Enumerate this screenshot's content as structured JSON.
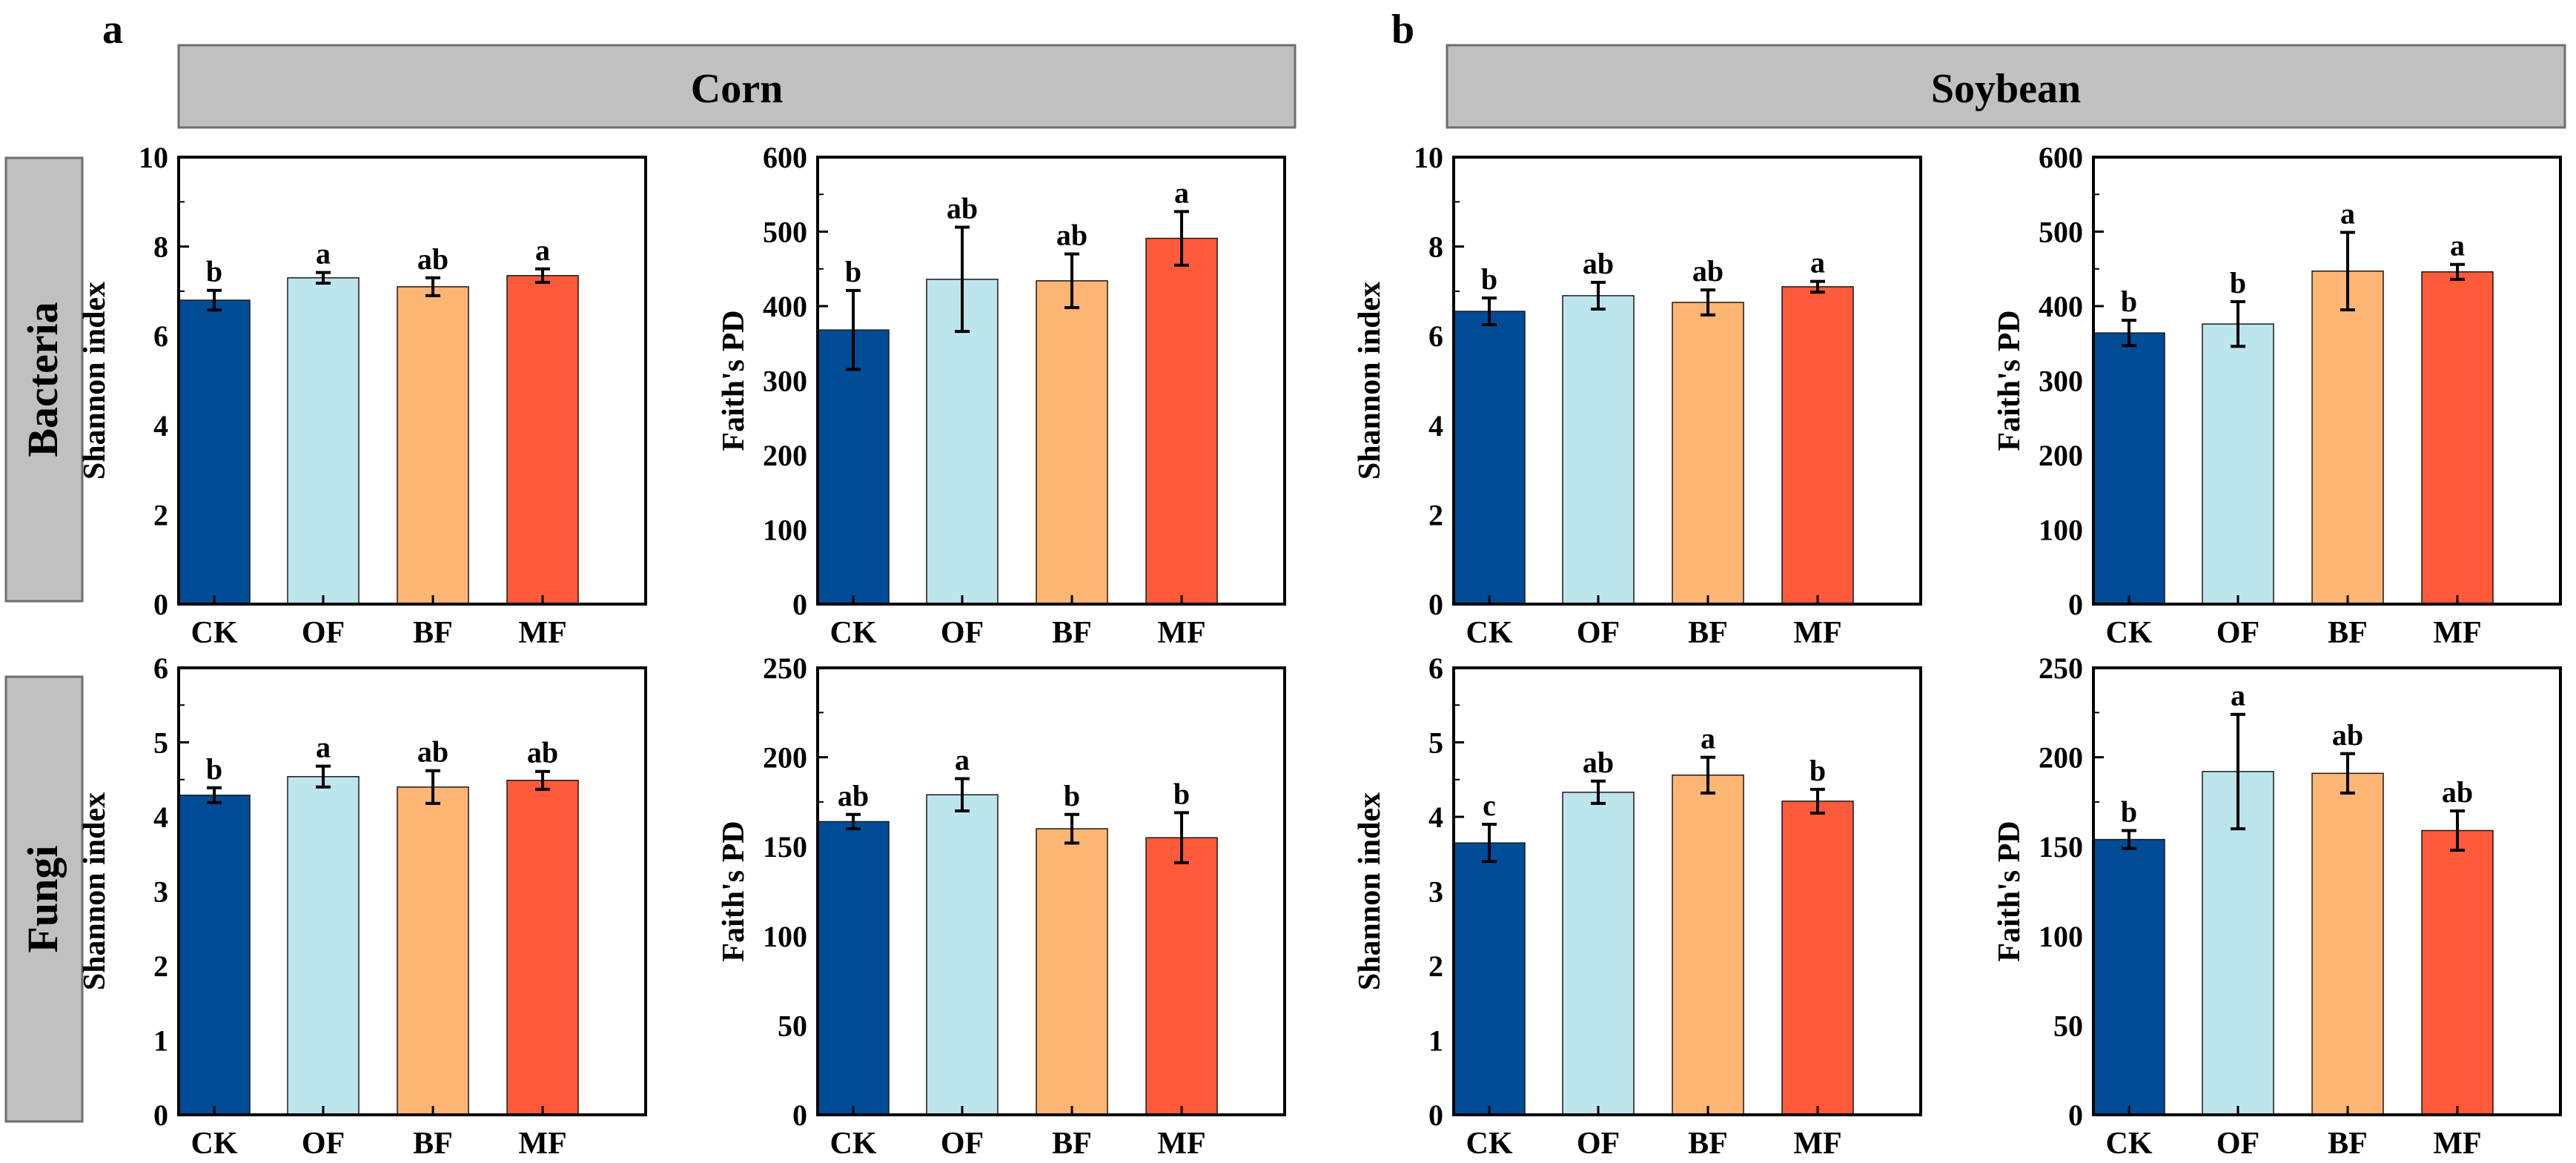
{
  "panel_labels": {
    "a": "a",
    "b": "b"
  },
  "crops": {
    "corn": "Corn",
    "soybean": "Soybean"
  },
  "kingdoms": {
    "bacteria": "Bacteria",
    "fungi": "Fungi"
  },
  "colors": {
    "CK": "#004C97",
    "OF": "#BDE5EC",
    "BF": "#FDB574",
    "MF": "#FF5A3A",
    "header_fill": "#C0C0C0",
    "axis": "#000000"
  },
  "chart_data": [
    {
      "id": "corn-bacteria-shannon",
      "type": "bar",
      "crop": "Corn",
      "kingdom": "Bacteria",
      "ylabel": "Shannon index",
      "ylim": [
        0,
        10
      ],
      "yticks": [
        0,
        2,
        4,
        6,
        8,
        10
      ],
      "categories": [
        "CK",
        "OF",
        "BF",
        "MF"
      ],
      "values": [
        6.8,
        7.3,
        7.1,
        7.35
      ],
      "errors": [
        0.22,
        0.12,
        0.2,
        0.15
      ],
      "letters": [
        "b",
        "a",
        "ab",
        "a"
      ]
    },
    {
      "id": "corn-bacteria-faith",
      "type": "bar",
      "crop": "Corn",
      "kingdom": "Bacteria",
      "ylabel": "Faith's PD",
      "ylim": [
        0,
        600
      ],
      "yticks": [
        0,
        100,
        200,
        300,
        400,
        500,
        600
      ],
      "categories": [
        "CK",
        "OF",
        "BF",
        "MF"
      ],
      "values": [
        368,
        436,
        434,
        491
      ],
      "errors": [
        53,
        70,
        36,
        36
      ],
      "letters": [
        "b",
        "ab",
        "ab",
        "a"
      ]
    },
    {
      "id": "soybean-bacteria-shannon",
      "type": "bar",
      "crop": "Soybean",
      "kingdom": "Bacteria",
      "ylabel": "Shannon index",
      "ylim": [
        0,
        10
      ],
      "yticks": [
        0,
        2,
        4,
        6,
        8,
        10
      ],
      "categories": [
        "CK",
        "OF",
        "BF",
        "MF"
      ],
      "values": [
        6.55,
        6.9,
        6.75,
        7.1
      ],
      "errors": [
        0.3,
        0.3,
        0.28,
        0.12
      ],
      "letters": [
        "b",
        "ab",
        "ab",
        "a"
      ]
    },
    {
      "id": "soybean-bacteria-faith",
      "type": "bar",
      "crop": "Soybean",
      "kingdom": "Bacteria",
      "ylabel": "Faith's PD",
      "ylim": [
        0,
        600
      ],
      "yticks": [
        0,
        100,
        200,
        300,
        400,
        500,
        600
      ],
      "categories": [
        "CK",
        "OF",
        "BF",
        "MF"
      ],
      "values": [
        364,
        376,
        447,
        446
      ],
      "errors": [
        17,
        30,
        52,
        10
      ],
      "letters": [
        "b",
        "b",
        "a",
        "a"
      ]
    },
    {
      "id": "corn-fungi-shannon",
      "type": "bar",
      "crop": "Corn",
      "kingdom": "Fungi",
      "ylabel": "Shannon index",
      "ylim": [
        0,
        6
      ],
      "yticks": [
        0,
        1,
        2,
        3,
        4,
        5,
        6
      ],
      "categories": [
        "CK",
        "OF",
        "BF",
        "MF"
      ],
      "values": [
        4.29,
        4.54,
        4.4,
        4.49
      ],
      "errors": [
        0.1,
        0.14,
        0.22,
        0.12
      ],
      "letters": [
        "b",
        "a",
        "ab",
        "ab"
      ]
    },
    {
      "id": "corn-fungi-faith",
      "type": "bar",
      "crop": "Corn",
      "kingdom": "Fungi",
      "ylabel": "Faith's PD",
      "ylim": [
        0,
        250
      ],
      "yticks": [
        0,
        50,
        100,
        150,
        200,
        250
      ],
      "categories": [
        "CK",
        "OF",
        "BF",
        "MF"
      ],
      "values": [
        164,
        179,
        160,
        155
      ],
      "errors": [
        4,
        9,
        8,
        14
      ],
      "letters": [
        "ab",
        "a",
        "b",
        "b"
      ]
    },
    {
      "id": "soybean-fungi-shannon",
      "type": "bar",
      "crop": "Soybean",
      "kingdom": "Fungi",
      "ylabel": "Shannon index",
      "ylim": [
        0,
        6
      ],
      "yticks": [
        0,
        1,
        2,
        3,
        4,
        5,
        6
      ],
      "categories": [
        "CK",
        "OF",
        "BF",
        "MF"
      ],
      "values": [
        3.65,
        4.33,
        4.56,
        4.21
      ],
      "errors": [
        0.25,
        0.15,
        0.24,
        0.16
      ],
      "letters": [
        "c",
        "ab",
        "a",
        "b"
      ]
    },
    {
      "id": "soybean-fungi-faith",
      "type": "bar",
      "crop": "Soybean",
      "kingdom": "Fungi",
      "ylabel": "Faith's PD",
      "ylim": [
        0,
        250
      ],
      "yticks": [
        0,
        50,
        100,
        150,
        200,
        250
      ],
      "categories": [
        "CK",
        "OF",
        "BF",
        "MF"
      ],
      "values": [
        154,
        192,
        191,
        159
      ],
      "errors": [
        5,
        32,
        11,
        11
      ],
      "letters": [
        "b",
        "a",
        "ab",
        "ab"
      ]
    }
  ]
}
